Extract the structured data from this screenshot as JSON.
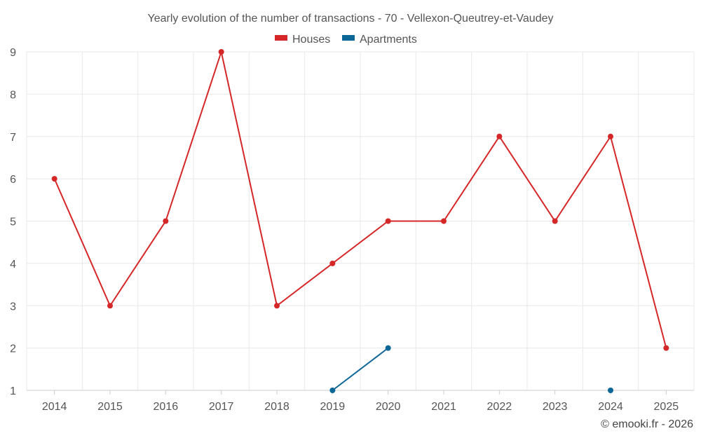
{
  "chart_data": {
    "type": "line",
    "title": "Yearly evolution of the number of transactions - 70 - Vellexon-Queutrey-et-Vaudey",
    "categories": [
      "2014",
      "2015",
      "2016",
      "2017",
      "2018",
      "2019",
      "2020",
      "2021",
      "2022",
      "2023",
      "2024",
      "2025"
    ],
    "ylim": [
      1,
      9
    ],
    "yticks": [
      1,
      2,
      3,
      4,
      5,
      6,
      7,
      8,
      9
    ],
    "grid": true,
    "legend_position": "top-center",
    "series": [
      {
        "name": "Houses",
        "color": "#d62728",
        "values": [
          6,
          3,
          5,
          9,
          3,
          4,
          5,
          5,
          7,
          5,
          7,
          2
        ]
      },
      {
        "name": "Apartments",
        "color": "#0d6796",
        "values": [
          null,
          null,
          null,
          null,
          null,
          1,
          2,
          null,
          null,
          null,
          1,
          null
        ]
      }
    ]
  },
  "credit": "© emooki.fr - 2026"
}
